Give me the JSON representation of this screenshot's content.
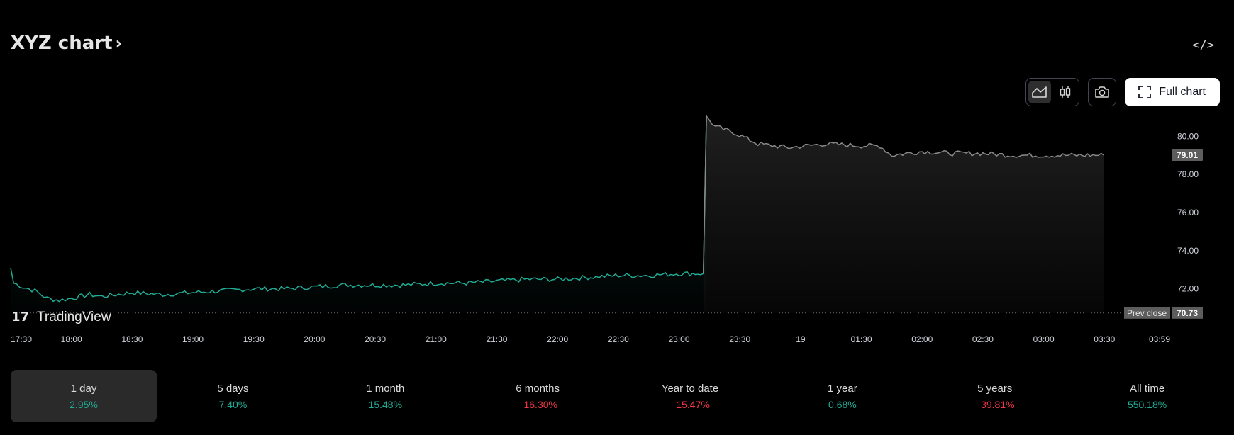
{
  "header": {
    "title": "XYZ chart",
    "embed_label": "</>"
  },
  "toolbar": {
    "full_chart_label": "Full chart"
  },
  "chart_data": {
    "type": "area",
    "x_ticks": [
      "17:30",
      "18:00",
      "18:30",
      "19:00",
      "19:30",
      "20:00",
      "20:30",
      "21:00",
      "21:30",
      "22:00",
      "22:30",
      "23:00",
      "23:30",
      "19",
      "01:30",
      "02:00",
      "02:30",
      "03:00",
      "03:30",
      "03:59"
    ],
    "y_ticks": [
      "80.00",
      "78.00",
      "76.00",
      "74.00",
      "72.00"
    ],
    "ylim": [
      70.5,
      81.2
    ],
    "last_price": 79.01,
    "last_price_label": "79.01",
    "prev_close": 70.73,
    "prev_close_text": "Prev close",
    "prev_close_label": "70.73",
    "watermark": "TradingView",
    "series": [
      {
        "points": [
          [
            0,
            73.1
          ],
          [
            0.05,
            72.3
          ],
          [
            0.2,
            72.1
          ],
          [
            0.4,
            71.9
          ],
          [
            0.6,
            71.5
          ],
          [
            0.8,
            71.4
          ],
          [
            1.0,
            71.5
          ],
          [
            1.3,
            71.7
          ],
          [
            1.5,
            71.6
          ],
          [
            2.0,
            71.8
          ],
          [
            2.5,
            71.7
          ],
          [
            3.0,
            71.8
          ],
          [
            3.5,
            71.9
          ],
          [
            4.0,
            72.0
          ],
          [
            4.5,
            72.0
          ],
          [
            5.0,
            72.1
          ],
          [
            5.5,
            72.2
          ],
          [
            6.0,
            72.2
          ],
          [
            6.5,
            72.2
          ],
          [
            7.0,
            72.3
          ],
          [
            7.5,
            72.3
          ],
          [
            8.0,
            72.4
          ],
          [
            8.5,
            72.5
          ],
          [
            9.0,
            72.5
          ],
          [
            9.5,
            72.6
          ],
          [
            10.0,
            72.7
          ],
          [
            10.5,
            72.7
          ],
          [
            11.0,
            72.8
          ],
          [
            11.4,
            72.8
          ],
          [
            11.45,
            81.0
          ],
          [
            11.6,
            80.5
          ],
          [
            11.9,
            80.2
          ],
          [
            12.3,
            79.6
          ],
          [
            12.8,
            79.4
          ],
          [
            13.4,
            79.6
          ],
          [
            14.0,
            79.5
          ],
          [
            14.3,
            79.5
          ],
          [
            14.5,
            79.0
          ],
          [
            15.0,
            79.2
          ],
          [
            15.5,
            79.1
          ],
          [
            16.0,
            79.1
          ],
          [
            16.5,
            79.0
          ],
          [
            17.0,
            79.0
          ],
          [
            17.5,
            79.0
          ],
          [
            17.99,
            79.01
          ]
        ],
        "colors": {
          "pre": "#22ab94",
          "post": "#8a8a8a"
        }
      }
    ]
  },
  "periods": [
    {
      "label": "1 day",
      "change": "2.95%",
      "dir": "pos",
      "active": true
    },
    {
      "label": "5 days",
      "change": "7.40%",
      "dir": "pos"
    },
    {
      "label": "1 month",
      "change": "15.48%",
      "dir": "pos"
    },
    {
      "label": "6 months",
      "change": "−16.30%",
      "dir": "neg"
    },
    {
      "label": "Year to date",
      "change": "−15.47%",
      "dir": "neg"
    },
    {
      "label": "1 year",
      "change": "0.68%",
      "dir": "pos"
    },
    {
      "label": "5 years",
      "change": "−39.81%",
      "dir": "neg"
    },
    {
      "label": "All time",
      "change": "550.18%",
      "dir": "pos"
    }
  ]
}
